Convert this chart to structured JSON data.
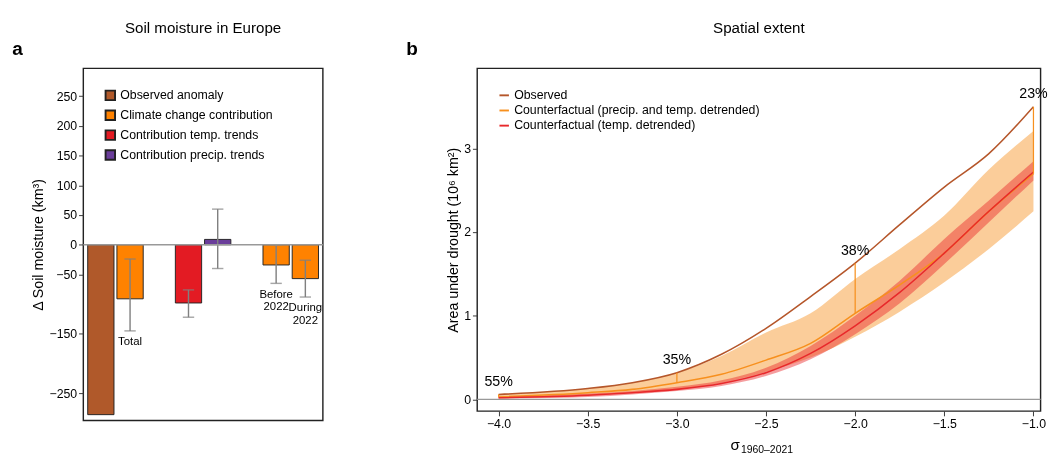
{
  "chart_data": [
    {
      "type": "bar",
      "title": "Soil moisture in Europe",
      "ylabel": "Δ Soil moisture (km³)",
      "annotations": [
        "a"
      ],
      "categories": [
        null,
        "Total",
        null,
        null,
        null,
        null,
        "Before 2022",
        "During 2022"
      ],
      "series": [
        {
          "name": "Observed anomaly",
          "color": "#b0592a",
          "values": [
            -286,
            null,
            null,
            null,
            null,
            null,
            null,
            null
          ]
        },
        {
          "name": "Climate change contribution",
          "color": "#ff8200",
          "values": [
            null,
            -91,
            null,
            null,
            null,
            null,
            -34,
            -57
          ],
          "errors": [
            null,
            [
              -145,
              -24
            ],
            null,
            null,
            null,
            null,
            [
              -65,
              0
            ],
            [
              -88,
              -26
            ]
          ]
        },
        {
          "name": "Contribution temp. trends",
          "color": "#e31b23",
          "values": [
            null,
            null,
            null,
            -98,
            null,
            null,
            null,
            null
          ],
          "errors": [
            null,
            null,
            null,
            [
              -122,
              -76
            ],
            null,
            null,
            null,
            null
          ]
        },
        {
          "name": "Contribution precip. trends",
          "color": "#6a3d9a",
          "values": [
            null,
            null,
            null,
            null,
            9,
            null,
            null,
            null
          ],
          "errors": [
            null,
            null,
            null,
            null,
            [
              -40,
              60
            ],
            null,
            null,
            null
          ]
        }
      ],
      "ylim": [
        -296,
        297
      ],
      "yticks": [
        250,
        200,
        150,
        100,
        50,
        0,
        {
          "value": -50,
          "label": "−50"
        },
        {
          "value": -150,
          "label": "−150"
        },
        {
          "value": -250,
          "label": "−250"
        }
      ],
      "ref_lines": [
        {
          "axis": "y",
          "value": 0,
          "color": "#999999"
        }
      ],
      "grid": false,
      "legend": "top left"
    },
    {
      "type": "line",
      "title": "Spatial extent",
      "xlabel": "σ$_{1960–2021}$",
      "ylabel": "Area under drought (10⁶ km²)",
      "annotations": [
        "b",
        {
          "text": "55%",
          "x": -4.0,
          "y": 0.06
        },
        {
          "text": "35%",
          "x": -3.0,
          "y": 0.32
        },
        {
          "text": "38%",
          "x": -2.0,
          "y": 1.63
        },
        {
          "text": "23%",
          "x": -1.0,
          "y": 3.5
        }
      ],
      "x": [
        -4.0,
        -3.5,
        -3.25,
        -3.0,
        -2.75,
        -2.5,
        -2.25,
        -2.0,
        -1.75,
        -1.5,
        -1.25,
        -1.0
      ],
      "series": [
        {
          "name": "Observed",
          "color": "#b5562a",
          "values": [
            0.06,
            0.13,
            0.2,
            0.32,
            0.54,
            0.85,
            1.23,
            1.63,
            2.09,
            2.54,
            2.94,
            3.5
          ]
        },
        {
          "name": "Counterfactual (precip. and temp. detrended)",
          "color": "#f7901e",
          "values": [
            0.03,
            0.08,
            0.12,
            0.2,
            0.3,
            0.47,
            0.67,
            1.03,
            1.37,
            1.75,
            2.25,
            2.7
          ],
          "lower": [
            0.01,
            0.05,
            0.08,
            0.12,
            0.2,
            0.33,
            0.5,
            0.75,
            1.05,
            1.4,
            1.8,
            2.25
          ],
          "upper": [
            0.06,
            0.13,
            0.2,
            0.32,
            0.52,
            0.8,
            1.03,
            1.44,
            1.8,
            2.2,
            2.75,
            3.21
          ]
        },
        {
          "name": "Counterfactual (temp. detrended)",
          "color": "#e8292b",
          "values": [
            0.02,
            0.05,
            0.08,
            0.12,
            0.19,
            0.32,
            0.55,
            0.88,
            1.28,
            1.75,
            2.25,
            2.72
          ],
          "lower": [
            0.01,
            0.03,
            0.06,
            0.1,
            0.16,
            0.28,
            0.48,
            0.78,
            1.15,
            1.62,
            2.12,
            2.62
          ],
          "upper": [
            0.03,
            0.07,
            0.1,
            0.15,
            0.23,
            0.38,
            0.64,
            1.0,
            1.42,
            1.92,
            2.38,
            2.85
          ]
        }
      ],
      "xlim": [
        -4.12,
        -0.96
      ],
      "ylim": [
        -0.14,
        3.96
      ],
      "xticks": [
        {
          "value": -4,
          "label": "−4.0"
        },
        {
          "value": -3.5,
          "label": "−3.5"
        },
        {
          "value": -3,
          "label": "−3.0"
        },
        {
          "value": -2.5,
          "label": "−2.5"
        },
        {
          "value": -2,
          "label": "−2.0"
        },
        {
          "value": -1.5,
          "label": "−1.5"
        },
        {
          "value": -1,
          "label": "−1.0"
        }
      ],
      "yticks": [
        0,
        1,
        2,
        3
      ],
      "ref_lines": [
        {
          "axis": "y",
          "value": 0,
          "color": "#999999"
        }
      ],
      "grid": false,
      "legend": "top left"
    }
  ]
}
